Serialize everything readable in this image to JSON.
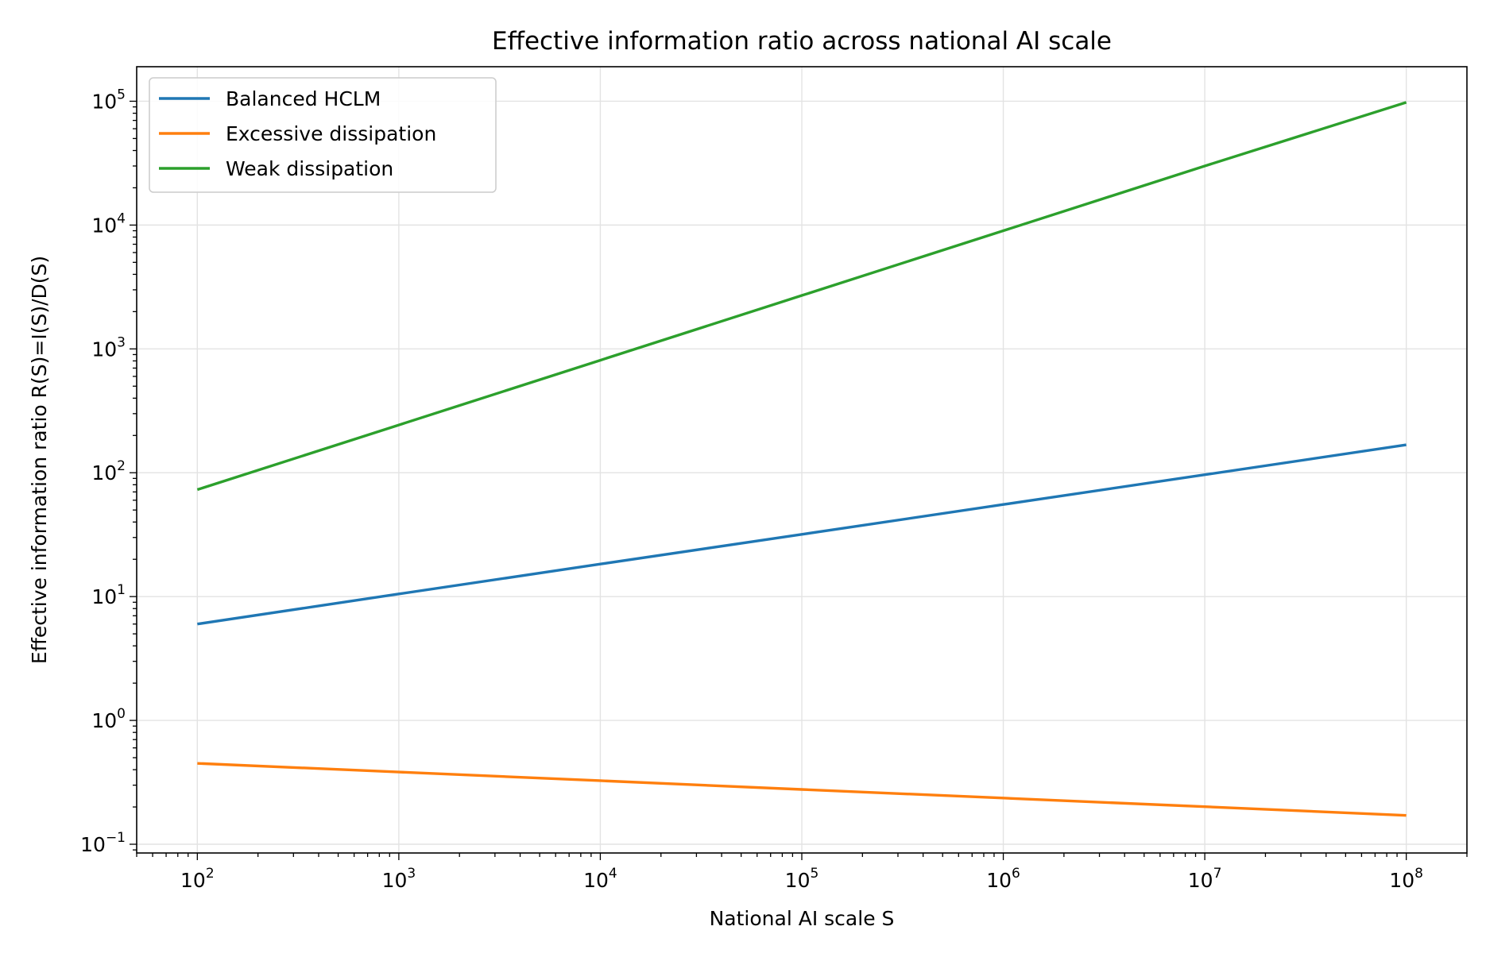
{
  "chart_data": {
    "type": "line",
    "title": "Effective information ratio across national AI scale",
    "xlabel": "National AI scale S",
    "ylabel": "Effective information ratio R(S)=I(S)/D(S)",
    "xscale": "log",
    "yscale": "log",
    "xlim": [
      50,
      200000000
    ],
    "ylim": [
      0.085,
      190000
    ],
    "grid": true,
    "legend_position": "top-left",
    "x_ticks": [
      {
        "base": "10",
        "exp": "2",
        "value": 100
      },
      {
        "base": "10",
        "exp": "3",
        "value": 1000
      },
      {
        "base": "10",
        "exp": "4",
        "value": 10000
      },
      {
        "base": "10",
        "exp": "5",
        "value": 100000
      },
      {
        "base": "10",
        "exp": "6",
        "value": 1000000
      },
      {
        "base": "10",
        "exp": "7",
        "value": 10000000
      },
      {
        "base": "10",
        "exp": "8",
        "value": 100000000
      }
    ],
    "y_ticks": [
      {
        "base": "10",
        "exp": "−1",
        "value": 0.1
      },
      {
        "base": "10",
        "exp": "0",
        "value": 1
      },
      {
        "base": "10",
        "exp": "1",
        "value": 10
      },
      {
        "base": "10",
        "exp": "2",
        "value": 100
      },
      {
        "base": "10",
        "exp": "3",
        "value": 1000
      },
      {
        "base": "10",
        "exp": "4",
        "value": 10000
      },
      {
        "base": "10",
        "exp": "5",
        "value": 100000
      }
    ],
    "series": [
      {
        "name": "Balanced HCLM",
        "color": "#1f77b4",
        "x": [
          100,
          1000,
          10000,
          100000,
          1000000,
          10000000,
          100000000
        ],
        "y": [
          6.0,
          10.5,
          18.3,
          31.8,
          55.4,
          96.4,
          168
        ]
      },
      {
        "name": "Excessive dissipation",
        "color": "#ff7f0e",
        "x": [
          100,
          1000,
          10000,
          100000,
          1000000,
          10000000,
          100000000
        ],
        "y": [
          0.45,
          0.383,
          0.326,
          0.277,
          0.236,
          0.201,
          0.171
        ]
      },
      {
        "name": "Weak dissipation",
        "color": "#2ca02c",
        "x": [
          100,
          1000,
          10000,
          100000,
          1000000,
          10000000,
          100000000
        ],
        "y": [
          73,
          243,
          810,
          2700,
          9000,
          30000,
          98000
        ]
      }
    ]
  }
}
